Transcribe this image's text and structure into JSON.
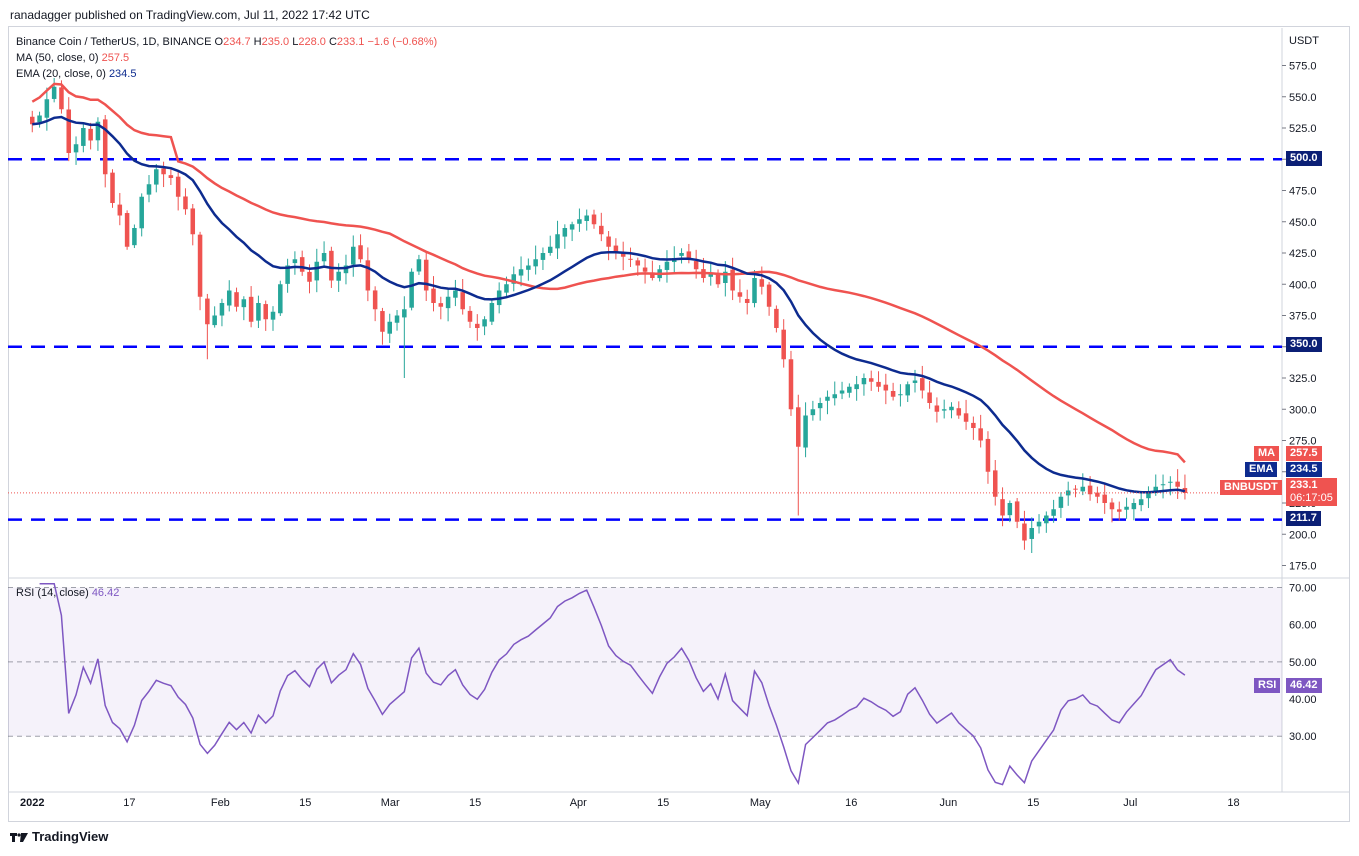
{
  "header": {
    "published": "ranadagger published on TradingView.com, Jul 11, 2022 17:42 UTC"
  },
  "legend": {
    "symbol": "Binance Coin / TetherUS, 1D, BINANCE",
    "o_label": "O",
    "o": "234.7",
    "h_label": "H",
    "h": "235.0",
    "l_label": "L",
    "l": "228.0",
    "c_label": "C",
    "c": "233.1",
    "change": "−1.6 (−0.68%)",
    "ma_label": "MA (50, close, 0)",
    "ma_value": "257.5",
    "ema_label": "EMA (20, close, 0)",
    "ema_value": "234.5",
    "rsi_label": "RSI (14, close)",
    "rsi_value": "46.42"
  },
  "axis": {
    "currency": "USDT"
  },
  "tags": {
    "ma_name": "MA",
    "ma_value": "257.5",
    "ema_name": "EMA",
    "ema_value": "234.5",
    "sym_name": "BNBUSDT",
    "sym_value": "233.1",
    "countdown": "06:17:05",
    "level_500": "500.0",
    "level_350": "350.0",
    "level_211": "211.7",
    "rsi_name": "RSI",
    "rsi_value": "46.42"
  },
  "footer": {
    "brand": "TradingView"
  },
  "colors": {
    "up": "#26a69a",
    "down": "#ef5350",
    "ma": "#ef5350",
    "ema": "#0d2b8f",
    "hline": "#0000ff",
    "rsi": "#7e57c2",
    "rsi_band": "#7e57c2"
  },
  "chart_data": [
    {
      "type": "candlestick",
      "title": "Binance Coin / TetherUS, 1D, BINANCE",
      "y_unit": "USDT",
      "ylim": [
        165,
        605
      ],
      "y_ticks": [
        175.0,
        200.0,
        225.0,
        250.0,
        275.0,
        300.0,
        325.0,
        350.0,
        375.0,
        400.0,
        425.0,
        450.0,
        475.0,
        500.0,
        525.0,
        550.0,
        575.0
      ],
      "x_ticks": [
        "2022",
        "17",
        "Feb",
        "15",
        "Mar",
        "15",
        "Apr",
        "15",
        "May",
        "16",
        "Jun",
        "15",
        "Jul",
        "18"
      ],
      "x_tick_days": [
        0,
        16,
        31,
        45,
        59,
        73,
        90,
        104,
        120,
        135,
        151,
        165,
        181,
        198
      ],
      "x_range_days": [
        -4,
        206
      ],
      "closes": [
        528,
        535,
        548,
        558,
        540,
        505,
        512,
        525,
        515,
        530,
        488,
        465,
        455,
        430,
        445,
        470,
        480,
        492,
        488,
        485,
        470,
        460,
        440,
        390,
        368,
        375,
        385,
        395,
        382,
        388,
        370,
        385,
        372,
        378,
        400,
        415,
        420,
        410,
        402,
        418,
        425,
        403,
        410,
        415,
        430,
        420,
        395,
        380,
        362,
        370,
        375,
        380,
        410,
        420,
        395,
        385,
        382,
        390,
        395,
        380,
        370,
        365,
        372,
        385,
        395,
        400,
        408,
        412,
        415,
        420,
        425,
        430,
        440,
        445,
        448,
        452,
        455,
        448,
        440,
        430,
        425,
        422,
        420,
        415,
        410,
        405,
        412,
        418,
        421,
        425,
        420,
        412,
        405,
        408,
        400,
        410,
        395,
        390,
        385,
        405,
        398,
        382,
        365,
        340,
        300,
        270,
        295,
        300,
        305,
        310,
        312,
        315,
        318,
        320,
        325,
        322,
        318,
        315,
        310,
        312,
        320,
        323,
        315,
        305,
        298,
        300,
        302,
        295,
        290,
        285,
        275,
        250,
        230,
        215,
        225,
        210,
        195,
        205,
        210,
        215,
        220,
        230,
        235,
        236,
        238,
        232,
        230,
        225,
        220,
        218,
        222,
        225,
        228,
        233,
        238,
        240,
        242,
        238,
        233
      ],
      "ma_label": "MA (50, close, 0)",
      "ema_label": "EMA (20, close, 0)",
      "last_ma": 257.5,
      "last_ema": 234.5,
      "last_close": 233.1,
      "horizontal_levels": [
        500.0,
        350.0,
        211.7
      ]
    },
    {
      "type": "line",
      "title": "RSI (14, close)",
      "ylim": [
        15,
        72
      ],
      "y_ticks": [
        30.0,
        40.0,
        50.0,
        60.0,
        70.0
      ],
      "band": [
        30,
        70
      ],
      "last_value": 46.42
    }
  ]
}
